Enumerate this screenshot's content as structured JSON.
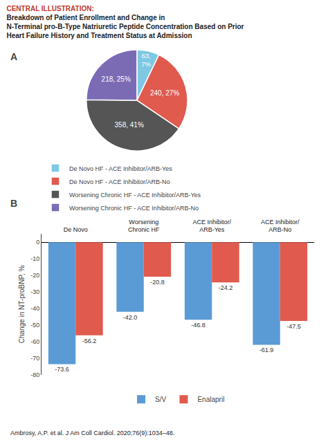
{
  "chart_data": [
    {
      "type": "pie",
      "title": "CENTRAL ILLUSTRATION:",
      "subtitle": "Breakdown of Patient Enrollment and Change in\nN-Terminal pro-B-Type Natriuretic Peptide Concentration Based on Prior\nHeart Failure History and Treatment Status at Admission",
      "categories": [
        "De Novo HF - ACE Inhibitor/ARB-Yes",
        "De Novo HF - ACE Inhibitor/ARB-No",
        "Worsening Chronic HF - ACE Inhibitor/ARB-Yes",
        "Worsening Chronic HF - ACE Inhibitor/ARB-No"
      ],
      "values": [
        63,
        240,
        358,
        218
      ],
      "value_labels": [
        "63,\n7%",
        "240, 27%",
        "358, 41%",
        "218, 25%"
      ],
      "colors": [
        "#7ec8e3",
        "#e05a4e",
        "#555555",
        "#7b6bb5"
      ],
      "data_labels": true,
      "legend": "bottom",
      "annotations": [
        "A"
      ]
    },
    {
      "type": "bar",
      "categories": [
        "De Novo",
        "Worsening\nChronic HF",
        "ACE Inhibitor/\nARB-Yes",
        "ACE Inhibitor/\nARB-No"
      ],
      "series": [
        {
          "name": "S/V",
          "color": "#5b9bd5",
          "values": [
            -73.6,
            -42.0,
            -46.8,
            -61.9
          ],
          "value_labels": [
            "-73.6",
            "-42.0",
            "-46.8",
            "-61.9"
          ]
        },
        {
          "name": "Enalapril",
          "color": "#e05a4e",
          "values": [
            -56.2,
            -20.8,
            -24.2,
            -47.5
          ],
          "value_labels": [
            "-56.2",
            "-20.8",
            "-24.2",
            "-47.5"
          ]
        }
      ],
      "ylabel": "Change in NT-proBNP, %",
      "ylim": [
        -80,
        5
      ],
      "yticks": [
        0,
        -10,
        -20,
        -30,
        -40,
        -50,
        -60,
        -70,
        -80
      ],
      "grid": false,
      "data_labels": true,
      "legend": "bottom",
      "annotations": [
        "B",
        "Ambrosy, A.P. et al. J Am Coll Cardiol. 2020;76(9):1034–48."
      ]
    }
  ]
}
